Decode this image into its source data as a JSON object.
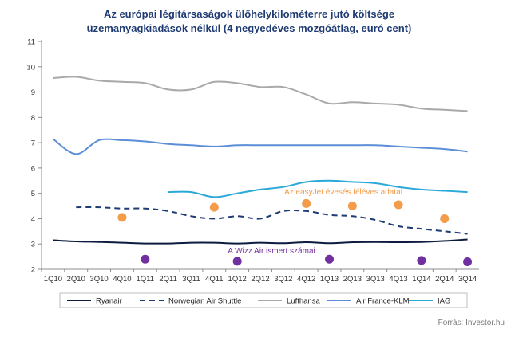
{
  "chart_data": {
    "type": "line",
    "title": [
      "Az európai légitársaságok ülőhelykilométerre jutó költsége",
      "üzemanyagkiadások nélkül (4 negyedéves mozgóátlag, euró cent)"
    ],
    "xlabel": "",
    "ylabel": "",
    "ylim": [
      2,
      11
    ],
    "yticks": [
      2,
      3,
      4,
      5,
      6,
      7,
      8,
      9,
      10,
      11
    ],
    "grid": false,
    "legend_position": "bottom",
    "categories": [
      "1Q10",
      "2Q10",
      "3Q10",
      "4Q10",
      "1Q11",
      "2Q11",
      "3Q11",
      "4Q11",
      "1Q12",
      "2Q12",
      "3Q12",
      "4Q12",
      "1Q13",
      "2Q13",
      "3Q13",
      "4Q13",
      "1Q14",
      "2Q14",
      "3Q14"
    ],
    "series": [
      {
        "name": "Ryanair",
        "color": "#0d1b3e",
        "style": "solid",
        "values": [
          3.15,
          3.1,
          3.08,
          3.05,
          3.02,
          3.02,
          3.05,
          3.05,
          3.02,
          3.05,
          3.03,
          3.07,
          3.03,
          3.07,
          3.08,
          3.07,
          3.08,
          3.12,
          3.18
        ]
      },
      {
        "name": "Norwegian Air Shuttle",
        "color": "#1f3b73",
        "style": "dashed",
        "values": [
          null,
          4.45,
          4.45,
          4.4,
          4.4,
          4.3,
          4.1,
          4.0,
          4.1,
          4.0,
          4.3,
          4.3,
          4.15,
          4.1,
          3.95,
          3.7,
          3.6,
          3.5,
          3.4
        ]
      },
      {
        "name": "Lufthansa",
        "color": "#a9a9a9",
        "style": "solid",
        "values": [
          9.55,
          9.6,
          9.45,
          9.4,
          9.35,
          9.1,
          9.1,
          9.4,
          9.35,
          9.2,
          9.2,
          8.9,
          8.55,
          8.6,
          8.55,
          8.5,
          8.35,
          8.3,
          8.25
        ]
      },
      {
        "name": "Air France-KLM",
        "color": "#5b8ed6",
        "style": "solid",
        "values": [
          7.15,
          6.55,
          7.1,
          7.1,
          7.05,
          6.95,
          6.9,
          6.85,
          6.9,
          6.9,
          6.9,
          6.9,
          6.9,
          6.9,
          6.9,
          6.85,
          6.8,
          6.75,
          6.65
        ]
      },
      {
        "name": "IAG",
        "color": "#2aa8d8",
        "style": "solid",
        "values": [
          null,
          null,
          null,
          null,
          null,
          5.05,
          5.05,
          4.85,
          5.0,
          5.15,
          5.25,
          5.45,
          5.5,
          5.45,
          5.4,
          5.25,
          5.15,
          5.1,
          5.05
        ]
      }
    ],
    "point_series": [
      {
        "label": "Az easyJet évesés féléves adatai",
        "color": "#f39c4a",
        "points": [
          {
            "x": "4Q10",
            "y": 4.05
          },
          {
            "x": "4Q11",
            "y": 4.45
          },
          {
            "x": "4Q12",
            "y": 4.6
          },
          {
            "x": "2Q13",
            "y": 4.5
          },
          {
            "x": "4Q13",
            "y": 4.55
          },
          {
            "x": "2Q14",
            "y": 4.0
          }
        ]
      },
      {
        "label": "A Wizz Air ismert számai",
        "color": "#7030a0",
        "points": [
          {
            "x": "1Q11",
            "y": 2.4
          },
          {
            "x": "1Q12",
            "y": 2.32
          },
          {
            "x": "1Q13",
            "y": 2.4
          },
          {
            "x": "1Q14",
            "y": 2.35
          },
          {
            "x": "3Q14",
            "y": 2.3
          }
        ]
      }
    ],
    "source": "Forrás: Investor.hu"
  }
}
